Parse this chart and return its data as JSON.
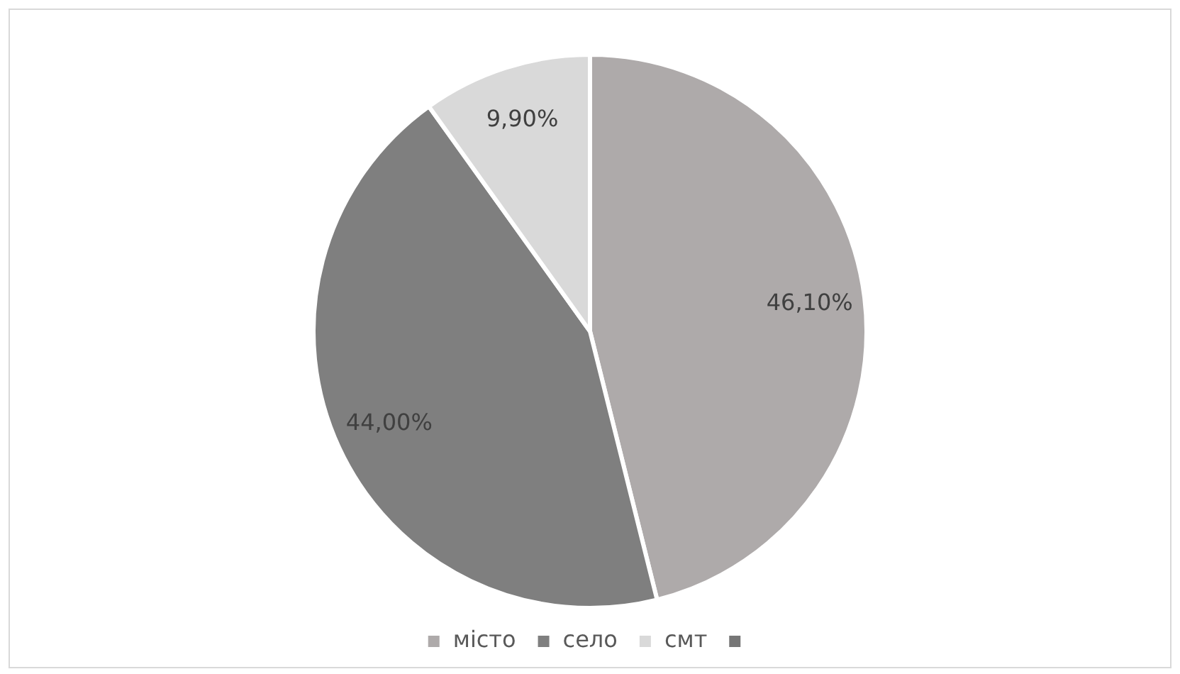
{
  "chart_data": {
    "type": "pie",
    "categories": [
      "місто",
      "село",
      "смт",
      null
    ],
    "values": [
      46.1,
      44.0,
      9.9,
      0
    ],
    "colors": [
      "#aeaaaa",
      "#7f7f7f",
      "#d9d9d9",
      "#767676"
    ],
    "value_labels": [
      "46,10%",
      "44,00%",
      "9,90%",
      null
    ],
    "legend": "bottom"
  }
}
